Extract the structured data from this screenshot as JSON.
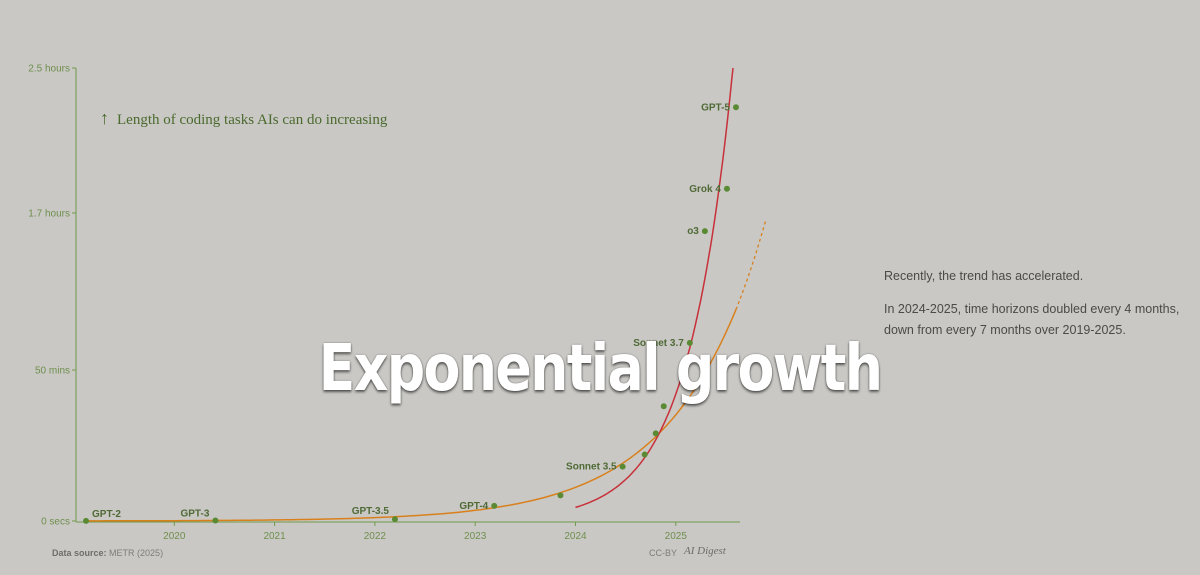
{
  "title": "Exponential growth",
  "subtitle": "Length of coding tasks AIs can do increasing",
  "subtitle_arrow": "↑",
  "side_text": [
    "Recently, the trend has accelerated.",
    "In 2024-2025, time horizons doubled every 4 months, down from every 7 months over 2019-2025."
  ],
  "source_label": "Data source:",
  "source_value": "METR (2025)",
  "license": "CC-BY",
  "brand": "AI Digest",
  "colors": {
    "background": "#c9c8c4",
    "axis": "#6f9a4c",
    "point": "#5a8a34",
    "trend_2019_2025": "#d9801c",
    "trend_2024_2025": "#c8303a"
  },
  "chart_data": {
    "type": "scatter",
    "x_unit": "year",
    "y_unit": "minutes",
    "xlim": [
      2019.1,
      2025.7
    ],
    "ylim": [
      0,
      150
    ],
    "y_ticks": [
      {
        "value": 0,
        "label": "0 secs"
      },
      {
        "value": 50,
        "label": "50 mins"
      },
      {
        "value": 102,
        "label": "1.7 hours"
      },
      {
        "value": 150,
        "label": "2.5 hours"
      }
    ],
    "x_ticks": [
      {
        "value": 2020,
        "label": "2020"
      },
      {
        "value": 2021,
        "label": "2021"
      },
      {
        "value": 2022,
        "label": "2022"
      },
      {
        "value": 2023,
        "label": "2023"
      },
      {
        "value": 2024,
        "label": "2024"
      },
      {
        "value": 2025,
        "label": "2025"
      }
    ],
    "points": [
      {
        "label": "GPT-2",
        "x": 2019.12,
        "y": 0.04
      },
      {
        "label": "GPT-3",
        "x": 2020.41,
        "y": 0.15
      },
      {
        "label": "GPT-3.5",
        "x": 2022.2,
        "y": 0.6
      },
      {
        "label": "GPT-4",
        "x": 2023.19,
        "y": 5
      },
      {
        "label": "",
        "x": 2023.85,
        "y": 8.5
      },
      {
        "label": "Sonnet 3.5",
        "x": 2024.47,
        "y": 18
      },
      {
        "label": "",
        "x": 2024.69,
        "y": 22
      },
      {
        "label": "",
        "x": 2024.8,
        "y": 29
      },
      {
        "label": "",
        "x": 2024.88,
        "y": 38
      },
      {
        "label": "Sonnet 3.7",
        "x": 2025.14,
        "y": 59
      },
      {
        "label": "o3",
        "x": 2025.29,
        "y": 96
      },
      {
        "label": "Grok 4",
        "x": 2025.51,
        "y": 110
      },
      {
        "label": "GPT-5",
        "x": 2025.6,
        "y": 137
      }
    ],
    "trends": [
      {
        "name": "2019-2025",
        "from": 2019.1,
        "to": 2025.6,
        "end_y": 70,
        "projection_to": 2025.9,
        "projection_end_y": 100
      },
      {
        "name": "2024-2025",
        "from": 2024.0,
        "to": 2025.57,
        "start_y": 4.5,
        "end_y": 150
      }
    ]
  }
}
